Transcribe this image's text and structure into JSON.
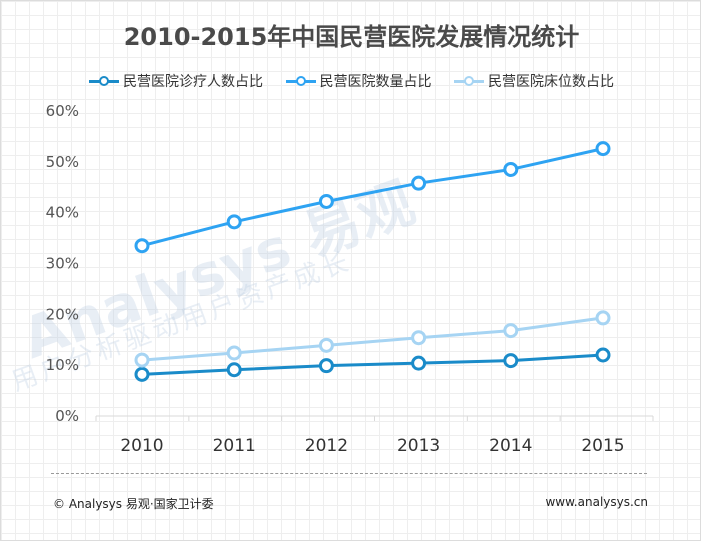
{
  "title": "2010-2015年中国民营医院发展情况统计",
  "chart_data": {
    "type": "line",
    "title": "2010-2015年中国民营医院发展情况统计",
    "categories": [
      "2010",
      "2011",
      "2012",
      "2013",
      "2014",
      "2015"
    ],
    "yticks": [
      "0%",
      "10%",
      "20%",
      "30%",
      "40%",
      "50%",
      "60%"
    ],
    "ylim": [
      0,
      60
    ],
    "grid": false,
    "legend_position": "top",
    "series": [
      {
        "name": "民营医院诊疗人数占比",
        "color": "#1a8bc9",
        "values": [
          8.2,
          9.1,
          9.9,
          10.4,
          10.9,
          12.0
        ]
      },
      {
        "name": "民营医院数量占比",
        "color": "#2ea3f2",
        "values": [
          33.5,
          38.2,
          42.2,
          45.8,
          48.5,
          52.6
        ]
      },
      {
        "name": "民营医院床位数占比",
        "color": "#a6d4f3",
        "values": [
          11.0,
          12.4,
          13.9,
          15.4,
          16.8,
          19.3
        ]
      }
    ]
  },
  "watermark": {
    "text": "Analysys 易观",
    "subtext": "用户分析驱动用户资产成长"
  },
  "footer": {
    "source": "© Analysys 易观·国家卫计委",
    "website": "www.analysys.cn"
  }
}
